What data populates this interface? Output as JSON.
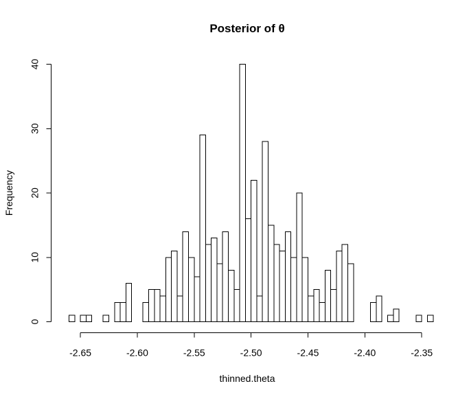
{
  "chart_data": {
    "type": "bar",
    "title": "Posterior of θ",
    "xlabel": "thinned.theta",
    "ylabel": "Frequency",
    "x_ticks": [
      -2.65,
      -2.6,
      -2.55,
      -2.5,
      -2.45,
      -2.4,
      -2.35
    ],
    "x_tick_labels": [
      "-2.65",
      "-2.60",
      "-2.55",
      "-2.50",
      "-2.45",
      "-2.40",
      "-2.35"
    ],
    "y_ticks": [
      0,
      10,
      20,
      30,
      40
    ],
    "y_tick_labels": [
      "0",
      "10",
      "20",
      "30",
      "40"
    ],
    "xlim": [
      -2.66,
      -2.345
    ],
    "ylim": [
      0,
      40
    ],
    "bin_start": -2.66,
    "bin_width": 0.005,
    "values": [
      1,
      0,
      1,
      1,
      0,
      0,
      1,
      0,
      3,
      3,
      6,
      0,
      0,
      3,
      5,
      5,
      4,
      10,
      11,
      4,
      14,
      10,
      7,
      29,
      12,
      13,
      9,
      14,
      8,
      5,
      40,
      16,
      22,
      4,
      28,
      15,
      12,
      11,
      14,
      10,
      20,
      10,
      4,
      5,
      3,
      8,
      5,
      11,
      12,
      9,
      0,
      0,
      0,
      3,
      4,
      0,
      1,
      2,
      0,
      0,
      0,
      1,
      0,
      1
    ],
    "bar_fill": "#ffffff",
    "bar_stroke": "#000000",
    "grid": false
  }
}
